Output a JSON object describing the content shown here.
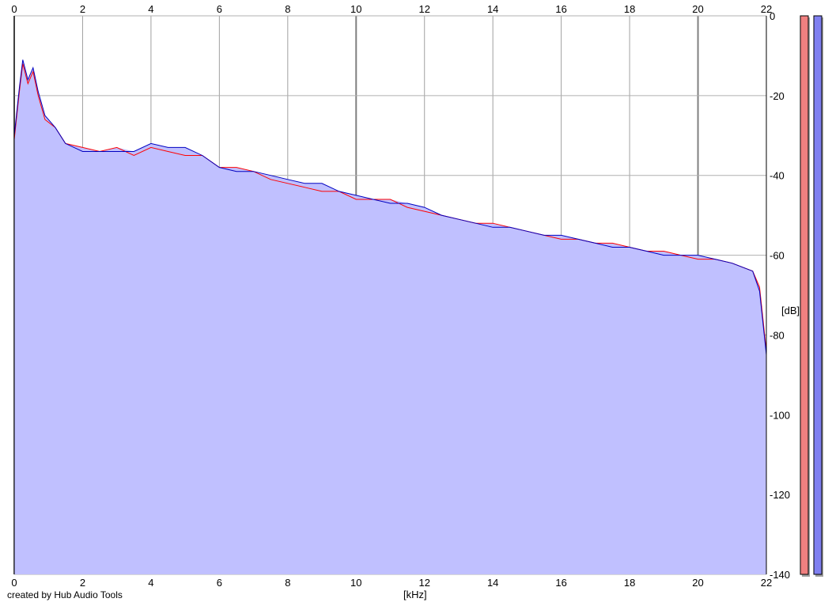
{
  "footer": "created by Hub Audio Tools",
  "chart_data": {
    "type": "area",
    "xlabel": "[kHz]",
    "ylabel": "[dB]",
    "xlim": [
      0,
      22
    ],
    "ylim": [
      -140,
      0
    ],
    "x_ticks": [
      "0",
      "2",
      "4",
      "6",
      "8",
      "10",
      "12",
      "14",
      "16",
      "18",
      "20",
      "22"
    ],
    "y_ticks": [
      "0",
      "-20",
      "-40",
      "-60",
      "-80",
      "-100",
      "-120",
      "-140"
    ],
    "grid": true,
    "fill_color": "#c0c0ff",
    "series": [
      {
        "color": "#ff0000",
        "x": [
          0,
          0.15,
          0.25,
          0.4,
          0.55,
          0.7,
          0.9,
          1.2,
          1.5,
          2.0,
          2.5,
          3.0,
          3.5,
          4.0,
          4.5,
          5.0,
          5.5,
          6.0,
          6.5,
          7.0,
          7.5,
          8.0,
          8.5,
          9.0,
          9.5,
          10.0,
          10.5,
          11.0,
          11.5,
          12.0,
          12.5,
          13.0,
          13.5,
          14.0,
          14.5,
          15.0,
          15.5,
          16.0,
          16.5,
          17.0,
          17.5,
          18.0,
          18.5,
          19.0,
          19.5,
          20.0,
          20.5,
          21.0,
          21.3,
          21.6,
          21.8,
          22.0
        ],
        "y": [
          -31,
          -19,
          -12,
          -17,
          -14,
          -20,
          -26,
          -28,
          -32,
          -33,
          -34,
          -33,
          -35,
          -33,
          -34,
          -35,
          -35,
          -38,
          -38,
          -39,
          -41,
          -42,
          -43,
          -44,
          -44,
          -46,
          -46,
          -46,
          -48,
          -49,
          -50,
          -51,
          -52,
          -52,
          -53,
          -54,
          -55,
          -56,
          -56,
          -57,
          -57,
          -58,
          -59,
          -59,
          -60,
          -61,
          -61,
          -62,
          -63,
          -64,
          -68,
          -84
        ]
      },
      {
        "color": "#0000c0",
        "x": [
          0,
          0.15,
          0.25,
          0.4,
          0.55,
          0.7,
          0.9,
          1.2,
          1.5,
          2.0,
          2.5,
          3.0,
          3.5,
          4.0,
          4.5,
          5.0,
          5.5,
          6.0,
          6.5,
          7.0,
          7.5,
          8.0,
          8.5,
          9.0,
          9.5,
          10.0,
          10.5,
          11.0,
          11.5,
          12.0,
          12.5,
          13.0,
          13.5,
          14.0,
          14.5,
          15.0,
          15.5,
          16.0,
          16.5,
          17.0,
          17.5,
          18.0,
          18.5,
          19.0,
          19.5,
          20.0,
          20.5,
          21.0,
          21.3,
          21.6,
          21.8,
          22.0
        ],
        "y": [
          -30,
          -18,
          -11,
          -16,
          -13,
          -19,
          -25,
          -28,
          -32,
          -34,
          -34,
          -34,
          -34,
          -32,
          -33,
          -33,
          -35,
          -38,
          -39,
          -39,
          -40,
          -41,
          -42,
          -42,
          -44,
          -45,
          -46,
          -47,
          -47,
          -48,
          -50,
          -51,
          -52,
          -53,
          -53,
          -54,
          -55,
          -55,
          -56,
          -57,
          -58,
          -58,
          -59,
          -60,
          -60,
          -60,
          -61,
          -62,
          -63,
          -64,
          -69,
          -85
        ]
      }
    ]
  }
}
